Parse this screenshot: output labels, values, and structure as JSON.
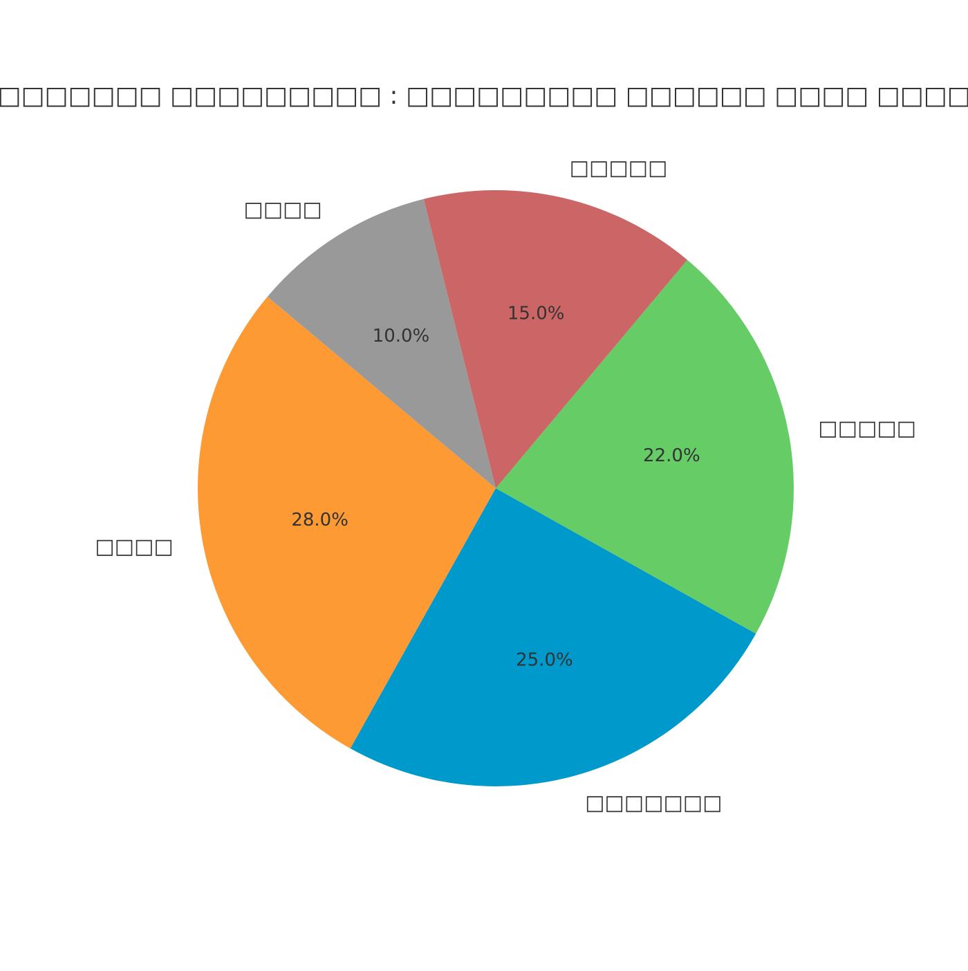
{
  "chart_data": {
    "type": "pie",
    "title": "□□□□□□□ □□□□□□□□□ : □□□□□□□□□ □□□□□□ □□□□ □□□□□",
    "categories": [
      "□□□□",
      "□□□□□□□",
      "□□□□□",
      "□□□□□",
      "□□□□"
    ],
    "values": [
      28,
      25,
      22,
      15,
      10
    ],
    "value_labels": [
      "28.0%",
      "25.0%",
      "22.0%",
      "15.0%",
      "10.0%"
    ],
    "colors": [
      "#fd9a34",
      "#0099cc",
      "#66cc66",
      "#cc6666",
      "#999999"
    ],
    "start_angle": 140
  }
}
